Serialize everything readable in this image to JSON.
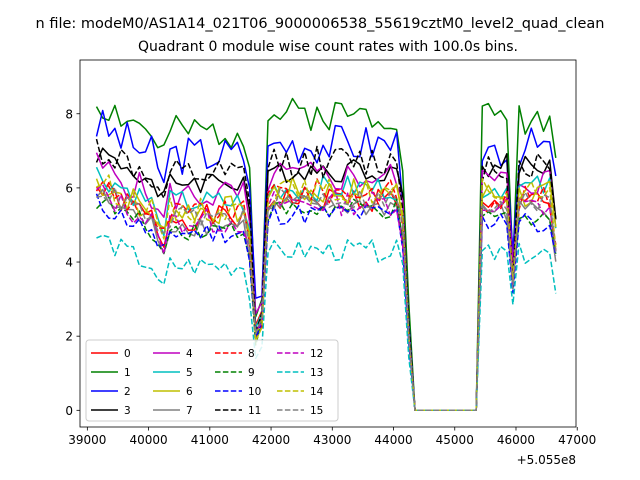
{
  "chart_data": {
    "type": "line",
    "suptitle": "n file: modeM0/AS1A14_021T06_9000006538_55619cztM0_level2_quad_clean",
    "title": "Quadrant 0 module wise count rates with 100.0s bins.",
    "xlabel": "",
    "ylabel": "",
    "x_offset_label": "+5.055e8",
    "xlim": [
      38880,
      46980
    ],
    "ylim": [
      -0.45,
      9.45
    ],
    "xticks": [
      39000,
      40000,
      41000,
      42000,
      43000,
      44000,
      45000,
      46000,
      47000
    ],
    "xtick_labels": [
      "39000",
      "40000",
      "41000",
      "42000",
      "43000",
      "44000",
      "45000",
      "46000",
      "47000"
    ],
    "yticks": [
      0,
      2,
      4,
      6,
      8
    ],
    "ytick_labels": [
      "0",
      "2",
      "4",
      "6",
      "8"
    ],
    "x_start": 39150,
    "x_step": 100,
    "n_points": 76,
    "gaps": [
      [
        44250,
        45250
      ]
    ],
    "segments": [
      {
        "from": 39150,
        "to": 41650,
        "kind": "pre_dip"
      },
      {
        "from": 41650,
        "to": 41950,
        "kind": "dip"
      },
      {
        "from": 41950,
        "to": 44150,
        "kind": "mid"
      },
      {
        "from": 45350,
        "to": 46650,
        "kind": "post"
      }
    ],
    "legend": {
      "location": "lower-left",
      "ncol": 4
    },
    "series": [
      {
        "name": "0",
        "color": "#ff0000",
        "dash": "solid",
        "level_pre": 5.2,
        "level_mid": 5.7,
        "level_post": 5.6,
        "dip_min": 2.3,
        "noise": 0.35,
        "seed": 1
      },
      {
        "name": "1",
        "color": "#008000",
        "dash": "solid",
        "level_pre": 7.5,
        "level_mid": 8.0,
        "level_post": 7.9,
        "dip_min": 2.7,
        "noise": 0.45,
        "seed": 2
      },
      {
        "name": "2",
        "color": "#0000ff",
        "dash": "solid",
        "level_pre": 6.9,
        "level_mid": 7.2,
        "level_post": 7.1,
        "dip_min": 2.9,
        "noise": 0.55,
        "seed": 3
      },
      {
        "name": "3",
        "color": "#000000",
        "dash": "solid",
        "level_pre": 6.2,
        "level_mid": 6.5,
        "level_post": 6.6,
        "dip_min": 2.0,
        "noise": 0.35,
        "seed": 4
      },
      {
        "name": "4",
        "color": "#bf00bf",
        "dash": "solid",
        "level_pre": 5.8,
        "level_mid": 6.3,
        "level_post": 6.2,
        "dip_min": 2.4,
        "noise": 0.45,
        "seed": 5
      },
      {
        "name": "5",
        "color": "#00bfbf",
        "dash": "solid",
        "level_pre": 5.6,
        "level_mid": 6.0,
        "level_post": 6.0,
        "dip_min": 2.2,
        "noise": 0.35,
        "seed": 6
      },
      {
        "name": "6",
        "color": "#bfbf00",
        "dash": "solid",
        "level_pre": 5.4,
        "level_mid": 5.9,
        "level_post": 5.8,
        "dip_min": 2.1,
        "noise": 0.4,
        "seed": 7
      },
      {
        "name": "7",
        "color": "#808080",
        "dash": "solid",
        "level_pre": 5.0,
        "level_mid": 5.5,
        "level_post": 5.4,
        "dip_min": 1.9,
        "noise": 0.3,
        "seed": 8
      },
      {
        "name": "8",
        "color": "#ff0000",
        "dash": "dashed",
        "level_pre": 5.3,
        "level_mid": 5.9,
        "level_post": 5.7,
        "dip_min": 2.0,
        "noise": 0.35,
        "seed": 9
      },
      {
        "name": "9",
        "color": "#008000",
        "dash": "dashed",
        "level_pre": 4.9,
        "level_mid": 5.4,
        "level_post": 5.3,
        "dip_min": 1.9,
        "noise": 0.3,
        "seed": 10
      },
      {
        "name": "10",
        "color": "#0000ff",
        "dash": "dashed",
        "level_pre": 4.8,
        "level_mid": 5.3,
        "level_post": 5.1,
        "dip_min": 1.9,
        "noise": 0.3,
        "seed": 11
      },
      {
        "name": "11",
        "color": "#000000",
        "dash": "dashed",
        "level_pre": 6.3,
        "level_mid": 6.7,
        "level_post": 6.6,
        "dip_min": 2.2,
        "noise": 0.45,
        "seed": 12
      },
      {
        "name": "12",
        "color": "#bf00bf",
        "dash": "dashed",
        "level_pre": 5.1,
        "level_mid": 5.6,
        "level_post": 5.5,
        "dip_min": 2.0,
        "noise": 0.35,
        "seed": 13
      },
      {
        "name": "13",
        "color": "#00bfbf",
        "dash": "dashed",
        "level_pre": 3.9,
        "level_mid": 4.3,
        "level_post": 4.2,
        "dip_min": 1.4,
        "noise": 0.3,
        "seed": 14
      },
      {
        "name": "14",
        "color": "#bfbf00",
        "dash": "dashed",
        "level_pre": 5.4,
        "level_mid": 5.9,
        "level_post": 5.9,
        "dip_min": 2.0,
        "noise": 0.35,
        "seed": 15
      },
      {
        "name": "15",
        "color": "#808080",
        "dash": "dashed",
        "level_pre": 5.2,
        "level_mid": 5.7,
        "level_post": 5.6,
        "dip_min": 2.0,
        "noise": 0.3,
        "seed": 16
      }
    ]
  }
}
